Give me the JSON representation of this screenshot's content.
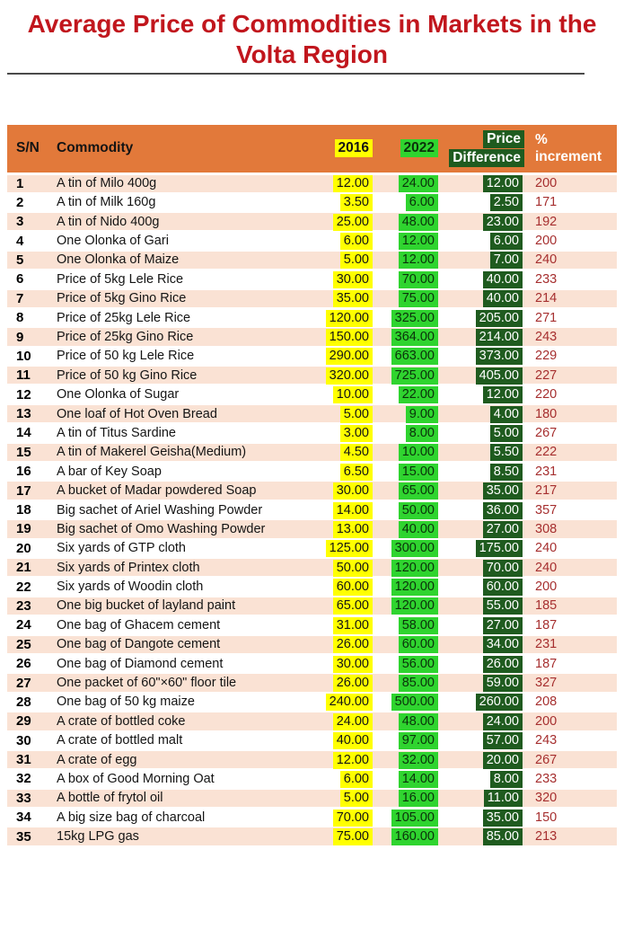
{
  "title": "Average Price of Commodities in Markets in the Volta Region",
  "colors": {
    "orange": "#E2793A",
    "peach": "#FAE2D4",
    "yellow": "#FFFF00",
    "green": "#2FD42F",
    "dark-green": "#1F5B1F",
    "title-red": "#C1161D",
    "pct-red": "#A62F2F"
  },
  "table": {
    "columns": [
      "S/N",
      "Commodity",
      "2016",
      "2022",
      "Price Difference",
      "% increment"
    ],
    "rows": [
      {
        "sn": "1",
        "commodity": "A tin of Milo  400g",
        "y2016": "12.00",
        "y2022": "24.00",
        "diff": "12.00",
        "pct": "200"
      },
      {
        "sn": "2",
        "commodity": "A tin of Milk 160g",
        "y2016": "3.50",
        "y2022": "6.00",
        "diff": "2.50",
        "pct": "171"
      },
      {
        "sn": "3",
        "commodity": "A tin of Nido 400g",
        "y2016": "25.00",
        "y2022": "48.00",
        "diff": "23.00",
        "pct": "192"
      },
      {
        "sn": "4",
        "commodity": "One Olonka of Gari",
        "y2016": "6.00",
        "y2022": "12.00",
        "diff": "6.00",
        "pct": "200"
      },
      {
        "sn": "5",
        "commodity": "One Olonka of Maize",
        "y2016": "5.00",
        "y2022": "12.00",
        "diff": "7.00",
        "pct": "240"
      },
      {
        "sn": "6",
        "commodity": "Price of 5kg Lele Rice",
        "y2016": "30.00",
        "y2022": "70.00",
        "diff": "40.00",
        "pct": "233"
      },
      {
        "sn": "7",
        "commodity": "Price of 5kg Gino Rice",
        "y2016": "35.00",
        "y2022": "75.00",
        "diff": "40.00",
        "pct": "214"
      },
      {
        "sn": "8",
        "commodity": "Price of 25kg Lele Rice",
        "y2016": "120.00",
        "y2022": "325.00",
        "diff": "205.00",
        "pct": "271"
      },
      {
        "sn": "9",
        "commodity": "Price of 25kg Gino Rice",
        "y2016": "150.00",
        "y2022": "364.00",
        "diff": "214.00",
        "pct": "243"
      },
      {
        "sn": "10",
        "commodity": "Price of 50 kg Lele Rice",
        "y2016": "290.00",
        "y2022": "663.00",
        "diff": "373.00",
        "pct": "229"
      },
      {
        "sn": "11",
        "commodity": "Price of 50 kg Gino Rice",
        "y2016": "320.00",
        "y2022": "725.00",
        "diff": "405.00",
        "pct": "227"
      },
      {
        "sn": "12",
        "commodity": "One Olonka of Sugar",
        "y2016": "10.00",
        "y2022": "22.00",
        "diff": "12.00",
        "pct": "220"
      },
      {
        "sn": "13",
        "commodity": "One loaf of Hot Oven Bread",
        "y2016": "5.00",
        "y2022": "9.00",
        "diff": "4.00",
        "pct": "180"
      },
      {
        "sn": "14",
        "commodity": "A tin of Titus Sardine",
        "y2016": "3.00",
        "y2022": "8.00",
        "diff": "5.00",
        "pct": "267"
      },
      {
        "sn": "15",
        "commodity": "A tin of Makerel Geisha(Medium)",
        "y2016": "4.50",
        "y2022": "10.00",
        "diff": "5.50",
        "pct": "222"
      },
      {
        "sn": "16",
        "commodity": "A bar of Key Soap",
        "y2016": "6.50",
        "y2022": "15.00",
        "diff": "8.50",
        "pct": "231"
      },
      {
        "sn": "17",
        "commodity": "A bucket of Madar powdered Soap",
        "y2016": "30.00",
        "y2022": "65.00",
        "diff": "35.00",
        "pct": "217"
      },
      {
        "sn": "18",
        "commodity": "Big sachet of Ariel Washing Powder",
        "y2016": "14.00",
        "y2022": "50.00",
        "diff": "36.00",
        "pct": "357"
      },
      {
        "sn": "19",
        "commodity": "Big sachet of Omo Washing Powder",
        "y2016": "13.00",
        "y2022": "40.00",
        "diff": "27.00",
        "pct": "308"
      },
      {
        "sn": "20",
        "commodity": "Six yards of GTP cloth",
        "y2016": "125.00",
        "y2022": "300.00",
        "diff": "175.00",
        "pct": "240"
      },
      {
        "sn": "21",
        "commodity": "Six yards of Printex cloth",
        "y2016": "50.00",
        "y2022": "120.00",
        "diff": "70.00",
        "pct": "240"
      },
      {
        "sn": "22",
        "commodity": "Six yards of Woodin cloth",
        "y2016": "60.00",
        "y2022": "120.00",
        "diff": "60.00",
        "pct": "200"
      },
      {
        "sn": "23",
        "commodity": "One big bucket of layland paint",
        "y2016": "65.00",
        "y2022": "120.00",
        "diff": "55.00",
        "pct": "185"
      },
      {
        "sn": "24",
        "commodity": "One bag of Ghacem cement",
        "y2016": "31.00",
        "y2022": "58.00",
        "diff": "27.00",
        "pct": "187"
      },
      {
        "sn": "25",
        "commodity": "One bag of Dangote cement",
        "y2016": "26.00",
        "y2022": "60.00",
        "diff": "34.00",
        "pct": "231"
      },
      {
        "sn": "26",
        "commodity": "One bag of Diamond cement",
        "y2016": "30.00",
        "y2022": "56.00",
        "diff": "26.00",
        "pct": "187"
      },
      {
        "sn": "27",
        "commodity": "One packet of 60\"×60\" floor tile",
        "y2016": "26.00",
        "y2022": "85.00",
        "diff": "59.00",
        "pct": "327"
      },
      {
        "sn": "28",
        "commodity": "One bag of 50 kg maize",
        "y2016": "240.00",
        "y2022": "500.00",
        "diff": "260.00",
        "pct": "208"
      },
      {
        "sn": "29",
        "commodity": "A crate of bottled coke",
        "y2016": "24.00",
        "y2022": "48.00",
        "diff": "24.00",
        "pct": "200"
      },
      {
        "sn": "30",
        "commodity": "A crate of bottled malt",
        "y2016": "40.00",
        "y2022": "97.00",
        "diff": "57.00",
        "pct": "243"
      },
      {
        "sn": "31",
        "commodity": "A crate of egg",
        "y2016": "12.00",
        "y2022": "32.00",
        "diff": "20.00",
        "pct": "267"
      },
      {
        "sn": "32",
        "commodity": "A box of Good Morning Oat",
        "y2016": "6.00",
        "y2022": "14.00",
        "diff": "8.00",
        "pct": "233"
      },
      {
        "sn": "33",
        "commodity": "A bottle of frytol oil",
        "y2016": "5.00",
        "y2022": "16.00",
        "diff": "11.00",
        "pct": "320"
      },
      {
        "sn": "34",
        "commodity": "A big size bag of charcoal",
        "y2016": "70.00",
        "y2022": "105.00",
        "diff": "35.00",
        "pct": "150"
      },
      {
        "sn": "35",
        "commodity": "15kg LPG gas",
        "y2016": "75.00",
        "y2022": "160.00",
        "diff": "85.00",
        "pct": "213"
      }
    ]
  }
}
